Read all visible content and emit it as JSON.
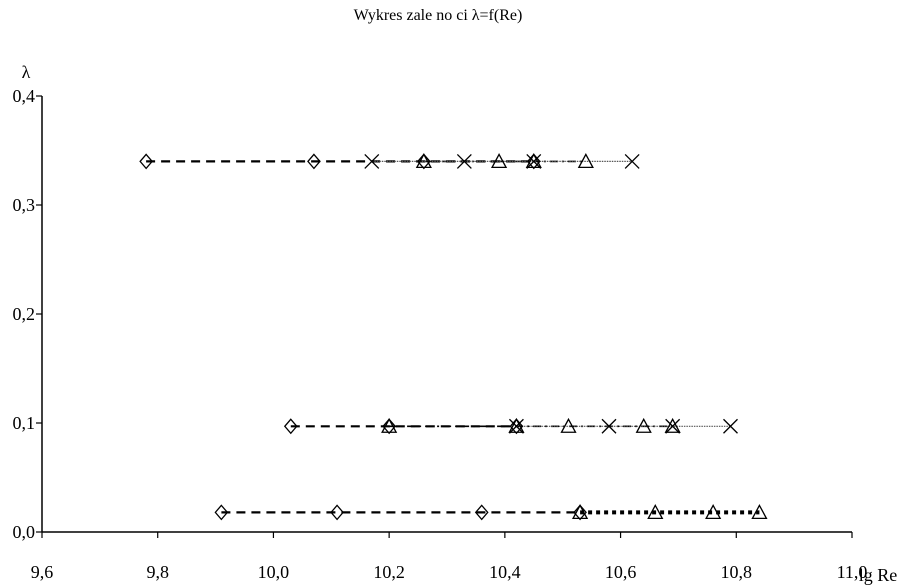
{
  "chart_data": {
    "type": "scatter",
    "title": "Wykres zale no ci λ=f(Re)",
    "xlabel": "lg Re",
    "ylabel": "λ",
    "xlim": [
      9.6,
      11.0
    ],
    "ylim": [
      0.0,
      0.4
    ],
    "x_ticks": [
      "9,6",
      "9,8",
      "10,0",
      "10,2",
      "10,4",
      "10,6",
      "10,8",
      "11,0"
    ],
    "y_ticks": [
      "0,0",
      "0,1",
      "0,2",
      "0,3",
      "0,4"
    ],
    "grid": false,
    "legend": "none",
    "series": [
      {
        "marker": "diamond",
        "line": "dash",
        "x": [
          9.78,
          10.07,
          10.26,
          10.45
        ],
        "y": [
          0.34,
          0.34,
          0.34,
          0.34
        ]
      },
      {
        "marker": "triangle",
        "line": "dashdot",
        "x": [
          10.26,
          10.39,
          10.45,
          10.54
        ],
        "y": [
          0.34,
          0.34,
          0.34,
          0.34
        ]
      },
      {
        "marker": "cross",
        "line": "dotted-thin",
        "x": [
          10.17,
          10.33,
          10.45,
          10.62
        ],
        "y": [
          0.34,
          0.34,
          0.34,
          0.34
        ]
      },
      {
        "marker": "diamond",
        "line": "dash",
        "x": [
          10.03,
          10.2,
          10.42
        ],
        "y": [
          0.097,
          0.097,
          0.097
        ]
      },
      {
        "marker": "triangle",
        "line": "dashdot",
        "x": [
          10.2,
          10.42,
          10.51,
          10.64,
          10.69
        ],
        "y": [
          0.097,
          0.097,
          0.097,
          0.097,
          0.097
        ]
      },
      {
        "marker": "cross",
        "line": "dotted-thin",
        "x": [
          10.42,
          10.58,
          10.69,
          10.79
        ],
        "y": [
          0.097,
          0.097,
          0.097,
          0.097
        ]
      },
      {
        "marker": "diamond",
        "line": "dash",
        "x": [
          9.91,
          10.11,
          10.36,
          10.53
        ],
        "y": [
          0.018,
          0.018,
          0.018,
          0.018
        ]
      },
      {
        "marker": "triangle",
        "line": "dot-bold",
        "x": [
          10.53,
          10.66,
          10.76,
          10.84
        ],
        "y": [
          0.018,
          0.018,
          0.018,
          0.018
        ]
      }
    ]
  }
}
